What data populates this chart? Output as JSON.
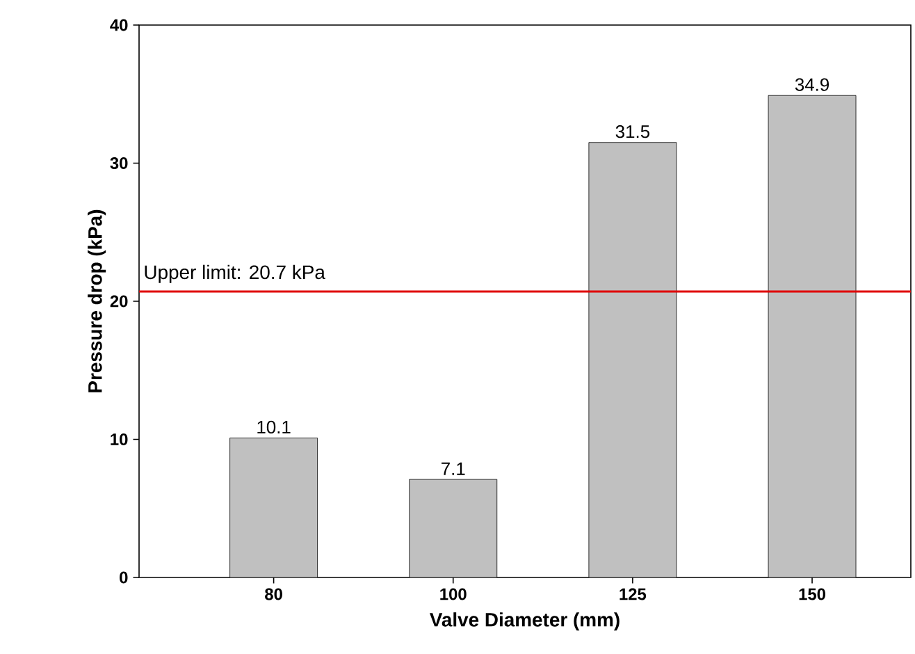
{
  "chart_data": {
    "type": "bar",
    "xlabel": "Valve Diameter (mm)",
    "ylabel": "Pressure drop (kPa)",
    "categories": [
      "80",
      "100",
      "125",
      "150"
    ],
    "values": [
      10.1,
      7.1,
      31.5,
      34.9
    ],
    "color": "#c0c0c0",
    "ylim": [
      0,
      40
    ],
    "yticks": [
      0,
      10,
      20,
      30,
      40
    ],
    "data_labels": true,
    "ref_lines": [
      {
        "axis": "y",
        "value": 20.7,
        "label": "Upper limit: 20.7 kPa",
        "color": "#e00000"
      }
    ]
  }
}
